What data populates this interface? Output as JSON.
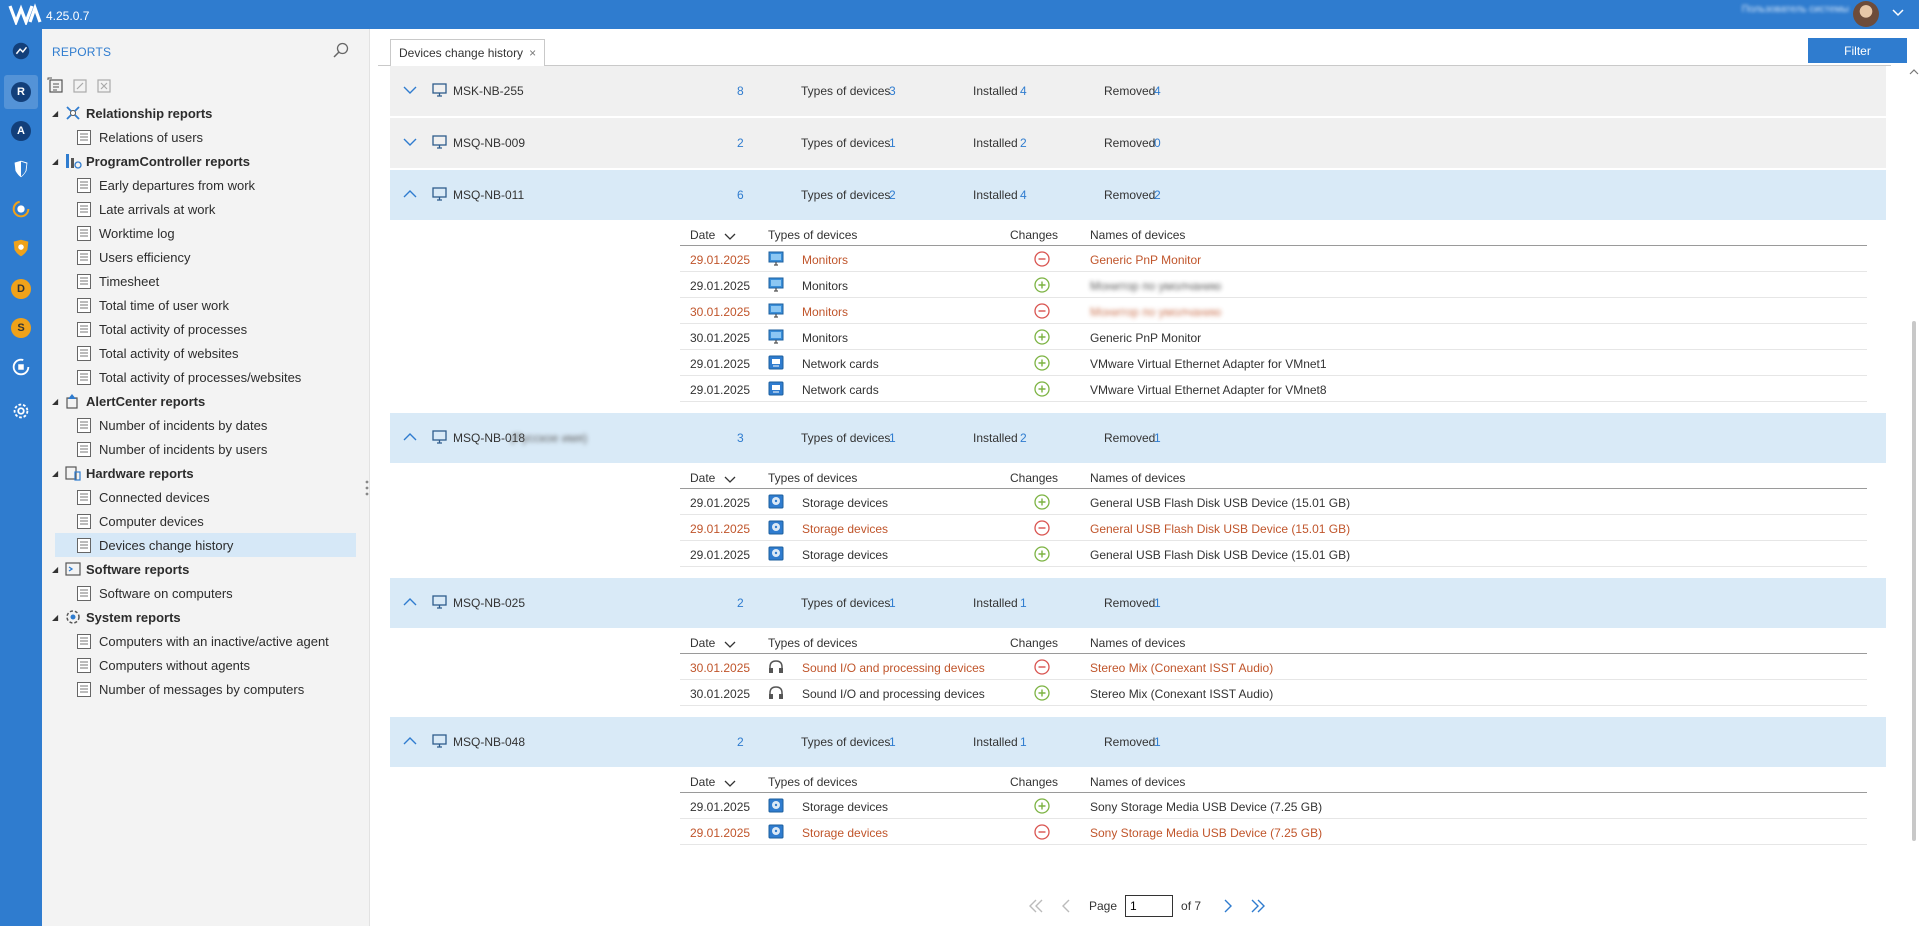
{
  "app": {
    "version": "4.25.0.7",
    "user_text": "Пользователь системы"
  },
  "rail": {
    "items": [
      {
        "name": "dashboard",
        "letter": ""
      },
      {
        "name": "reports",
        "letter": "R"
      },
      {
        "name": "alerts",
        "letter": "A"
      },
      {
        "name": "shield",
        "letter": ""
      },
      {
        "name": "activity",
        "letter": ""
      },
      {
        "name": "security",
        "letter": ""
      },
      {
        "name": "devices",
        "letter": "D"
      },
      {
        "name": "software",
        "letter": "S"
      },
      {
        "name": "updates",
        "letter": ""
      },
      {
        "name": "settings",
        "letter": ""
      }
    ]
  },
  "sidebar": {
    "title": "REPORTS",
    "categories": [
      {
        "label": "Relationship reports",
        "items": [
          "Relations of users"
        ]
      },
      {
        "label": "ProgramController reports",
        "items": [
          "Early departures from work",
          "Late arrivals at work",
          "Worktime log",
          "Users efficiency",
          "Timesheet",
          "Total time of user work",
          "Total activity of processes",
          "Total activity of websites",
          "Total activity of processes/websites"
        ]
      },
      {
        "label": "AlertCenter reports",
        "items": [
          "Number of incidents by dates",
          "Number of incidents by users"
        ]
      },
      {
        "label": "Hardware reports",
        "items": [
          "Connected devices",
          "Computer devices",
          "Devices change history"
        ]
      },
      {
        "label": "Software reports",
        "items": [
          "Software on computers"
        ]
      },
      {
        "label": "System reports",
        "items": [
          "Computers with an inactive/active agent",
          "Computers without agents",
          "Number of messages by computers"
        ]
      }
    ]
  },
  "tab": {
    "label": "Devices change history",
    "close": "×"
  },
  "filter_label": "Filter",
  "labels": {
    "types": "Types of devices",
    "installed": "Installed",
    "removed": "Removed",
    "col_date": "Date",
    "col_types": "Types of devices",
    "col_changes": "Changes",
    "col_names": "Names of devices"
  },
  "groups": [
    {
      "name": "MSK-NB-255",
      "blur": "",
      "count": "8",
      "types": "3",
      "installed": "4",
      "removed": "4",
      "expanded": false,
      "rows": []
    },
    {
      "name": "MSQ-NB-009",
      "blur": "",
      "count": "2",
      "types": "1",
      "installed": "2",
      "removed": "0",
      "expanded": false,
      "rows": []
    },
    {
      "name": "MSQ-NB-011",
      "blur": "",
      "count": "6",
      "types": "2",
      "installed": "4",
      "removed": "2",
      "expanded": true,
      "rows": [
        {
          "date": "29.01.2025",
          "type": "Monitors",
          "icon": "monitor",
          "change": "removed",
          "name": "Generic PnP Monitor",
          "blur": false
        },
        {
          "date": "29.01.2025",
          "type": "Monitors",
          "icon": "monitor",
          "change": "installed",
          "name": "Монитор по умолчанию",
          "blur": true
        },
        {
          "date": "30.01.2025",
          "type": "Monitors",
          "icon": "monitor",
          "change": "removed",
          "name": "Монитор по умолчанию",
          "blur": true
        },
        {
          "date": "30.01.2025",
          "type": "Monitors",
          "icon": "monitor",
          "change": "installed",
          "name": "Generic PnP Monitor",
          "blur": false
        },
        {
          "date": "29.01.2025",
          "type": "Network cards",
          "icon": "network",
          "change": "installed",
          "name": "VMware Virtual Ethernet Adapter for VMnet1",
          "blur": false
        },
        {
          "date": "29.01.2025",
          "type": "Network cards",
          "icon": "network",
          "change": "installed",
          "name": "VMware Virtual Ethernet Adapter for VMnet8",
          "blur": false
        }
      ]
    },
    {
      "name": "MSQ-NB-018",
      "blur": "(Русское имя)",
      "count": "3",
      "types": "1",
      "installed": "2",
      "removed": "1",
      "expanded": true,
      "rows": [
        {
          "date": "29.01.2025",
          "type": "Storage devices",
          "icon": "storage",
          "change": "installed",
          "name": "General USB Flash Disk USB Device (15.01 GB)",
          "blur": false
        },
        {
          "date": "29.01.2025",
          "type": "Storage devices",
          "icon": "storage",
          "change": "removed",
          "name": "General USB Flash Disk USB Device (15.01 GB)",
          "blur": false
        },
        {
          "date": "29.01.2025",
          "type": "Storage devices",
          "icon": "storage",
          "change": "installed",
          "name": "General USB Flash Disk USB Device (15.01 GB)",
          "blur": false
        }
      ]
    },
    {
      "name": "MSQ-NB-025",
      "blur": "",
      "count": "2",
      "types": "1",
      "installed": "1",
      "removed": "1",
      "expanded": true,
      "rows": [
        {
          "date": "30.01.2025",
          "type": "Sound I/O and processing devices",
          "icon": "sound",
          "change": "removed",
          "name": "Stereo Mix (Conexant ISST Audio)",
          "blur": false
        },
        {
          "date": "30.01.2025",
          "type": "Sound I/O and processing devices",
          "icon": "sound",
          "change": "installed",
          "name": "Stereo Mix (Conexant ISST Audio)",
          "blur": false
        }
      ]
    },
    {
      "name": "MSQ-NB-048",
      "blur": "",
      "count": "2",
      "types": "1",
      "installed": "1",
      "removed": "1",
      "expanded": true,
      "rows": [
        {
          "date": "29.01.2025",
          "type": "Storage devices",
          "icon": "storage",
          "change": "installed",
          "name": "Sony Storage Media USB Device (7.25 GB)",
          "blur": false
        },
        {
          "date": "29.01.2025",
          "type": "Storage devices",
          "icon": "storage",
          "change": "removed",
          "name": "Sony Storage Media USB Device (7.25 GB)",
          "blur": false
        }
      ]
    }
  ],
  "pager": {
    "page_label": "Page",
    "current": "1",
    "of_label": "of 7"
  },
  "colors": {
    "accent": "#2f7ccf",
    "removed": "#c0552b",
    "installed": "#7cb342",
    "removed_icon": "#d9534f"
  }
}
